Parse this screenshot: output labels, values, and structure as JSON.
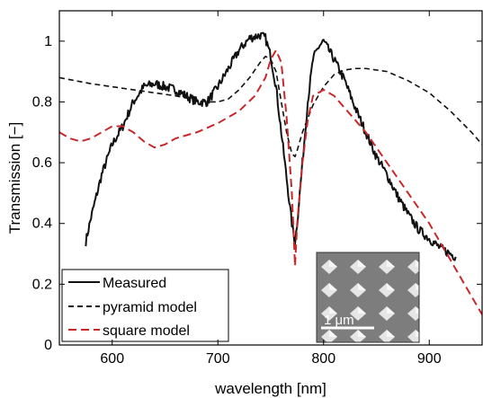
{
  "chart_data": {
    "type": "line",
    "title": "",
    "xlabel": "wavelength [nm]",
    "ylabel": "Transmission [−]",
    "xlim": [
      550,
      950
    ],
    "ylim": [
      0,
      1.1
    ],
    "x_ticks": [
      600,
      700,
      800,
      900
    ],
    "x_tick_labels": [
      "600",
      "700",
      "800",
      "900"
    ],
    "y_ticks": [
      0,
      0.2,
      0.4,
      0.6,
      0.8,
      1.0
    ],
    "y_tick_labels": [
      "0",
      "0.2",
      "0.4",
      "0.6",
      "0.8",
      "1"
    ],
    "grid": false,
    "legend_position": "bottom-left",
    "colors": {
      "measured": "#111111",
      "pyramid": "#111111",
      "square": "#c8282a"
    },
    "series": [
      {
        "name": "Measured",
        "style": "solid",
        "x": [
          575,
          580,
          590,
          600,
          610,
          620,
          630,
          640,
          650,
          660,
          670,
          680,
          690,
          700,
          710,
          720,
          730,
          740,
          745,
          750,
          755,
          760,
          765,
          770,
          773,
          775,
          780,
          785,
          790,
          795,
          800,
          810,
          820,
          830,
          840,
          850,
          860,
          870,
          880,
          890,
          900,
          910,
          920,
          925
        ],
        "y": [
          0.34,
          0.42,
          0.56,
          0.66,
          0.72,
          0.8,
          0.85,
          0.86,
          0.85,
          0.84,
          0.82,
          0.8,
          0.8,
          0.85,
          0.91,
          0.97,
          1.01,
          1.02,
          1.01,
          0.95,
          0.85,
          0.7,
          0.55,
          0.4,
          0.34,
          0.4,
          0.6,
          0.8,
          0.94,
          0.98,
          1.0,
          0.94,
          0.87,
          0.78,
          0.7,
          0.62,
          0.56,
          0.49,
          0.43,
          0.38,
          0.35,
          0.32,
          0.3,
          0.29
        ]
      },
      {
        "name": "pyramid model",
        "style": "dashed",
        "x": [
          550,
          580,
          620,
          660,
          690,
          700,
          710,
          720,
          730,
          740,
          745,
          750,
          755,
          760,
          765,
          770,
          773,
          775,
          780,
          790,
          800,
          810,
          820,
          830,
          840,
          860,
          880,
          900,
          920,
          940,
          950
        ],
        "y": [
          0.88,
          0.86,
          0.84,
          0.82,
          0.8,
          0.8,
          0.81,
          0.84,
          0.88,
          0.93,
          0.95,
          0.94,
          0.9,
          0.8,
          0.7,
          0.63,
          0.62,
          0.64,
          0.7,
          0.79,
          0.85,
          0.89,
          0.905,
          0.91,
          0.91,
          0.9,
          0.87,
          0.83,
          0.77,
          0.7,
          0.66
        ]
      },
      {
        "name": "square model",
        "style": "dashed",
        "x": [
          550,
          560,
          570,
          580,
          590,
          600,
          610,
          620,
          630,
          640,
          650,
          660,
          680,
          700,
          720,
          735,
          745,
          750,
          755,
          760,
          765,
          770,
          773,
          775,
          780,
          785,
          790,
          800,
          810,
          820,
          840,
          860,
          880,
          900,
          920,
          940,
          950
        ],
        "y": [
          0.7,
          0.68,
          0.67,
          0.68,
          0.7,
          0.72,
          0.72,
          0.7,
          0.67,
          0.65,
          0.66,
          0.68,
          0.7,
          0.73,
          0.77,
          0.82,
          0.88,
          0.94,
          0.97,
          0.93,
          0.75,
          0.5,
          0.26,
          0.4,
          0.6,
          0.74,
          0.82,
          0.84,
          0.82,
          0.78,
          0.7,
          0.6,
          0.5,
          0.4,
          0.28,
          0.16,
          0.1
        ]
      }
    ],
    "inset": {
      "scale_bar_label": "1 μm"
    }
  }
}
